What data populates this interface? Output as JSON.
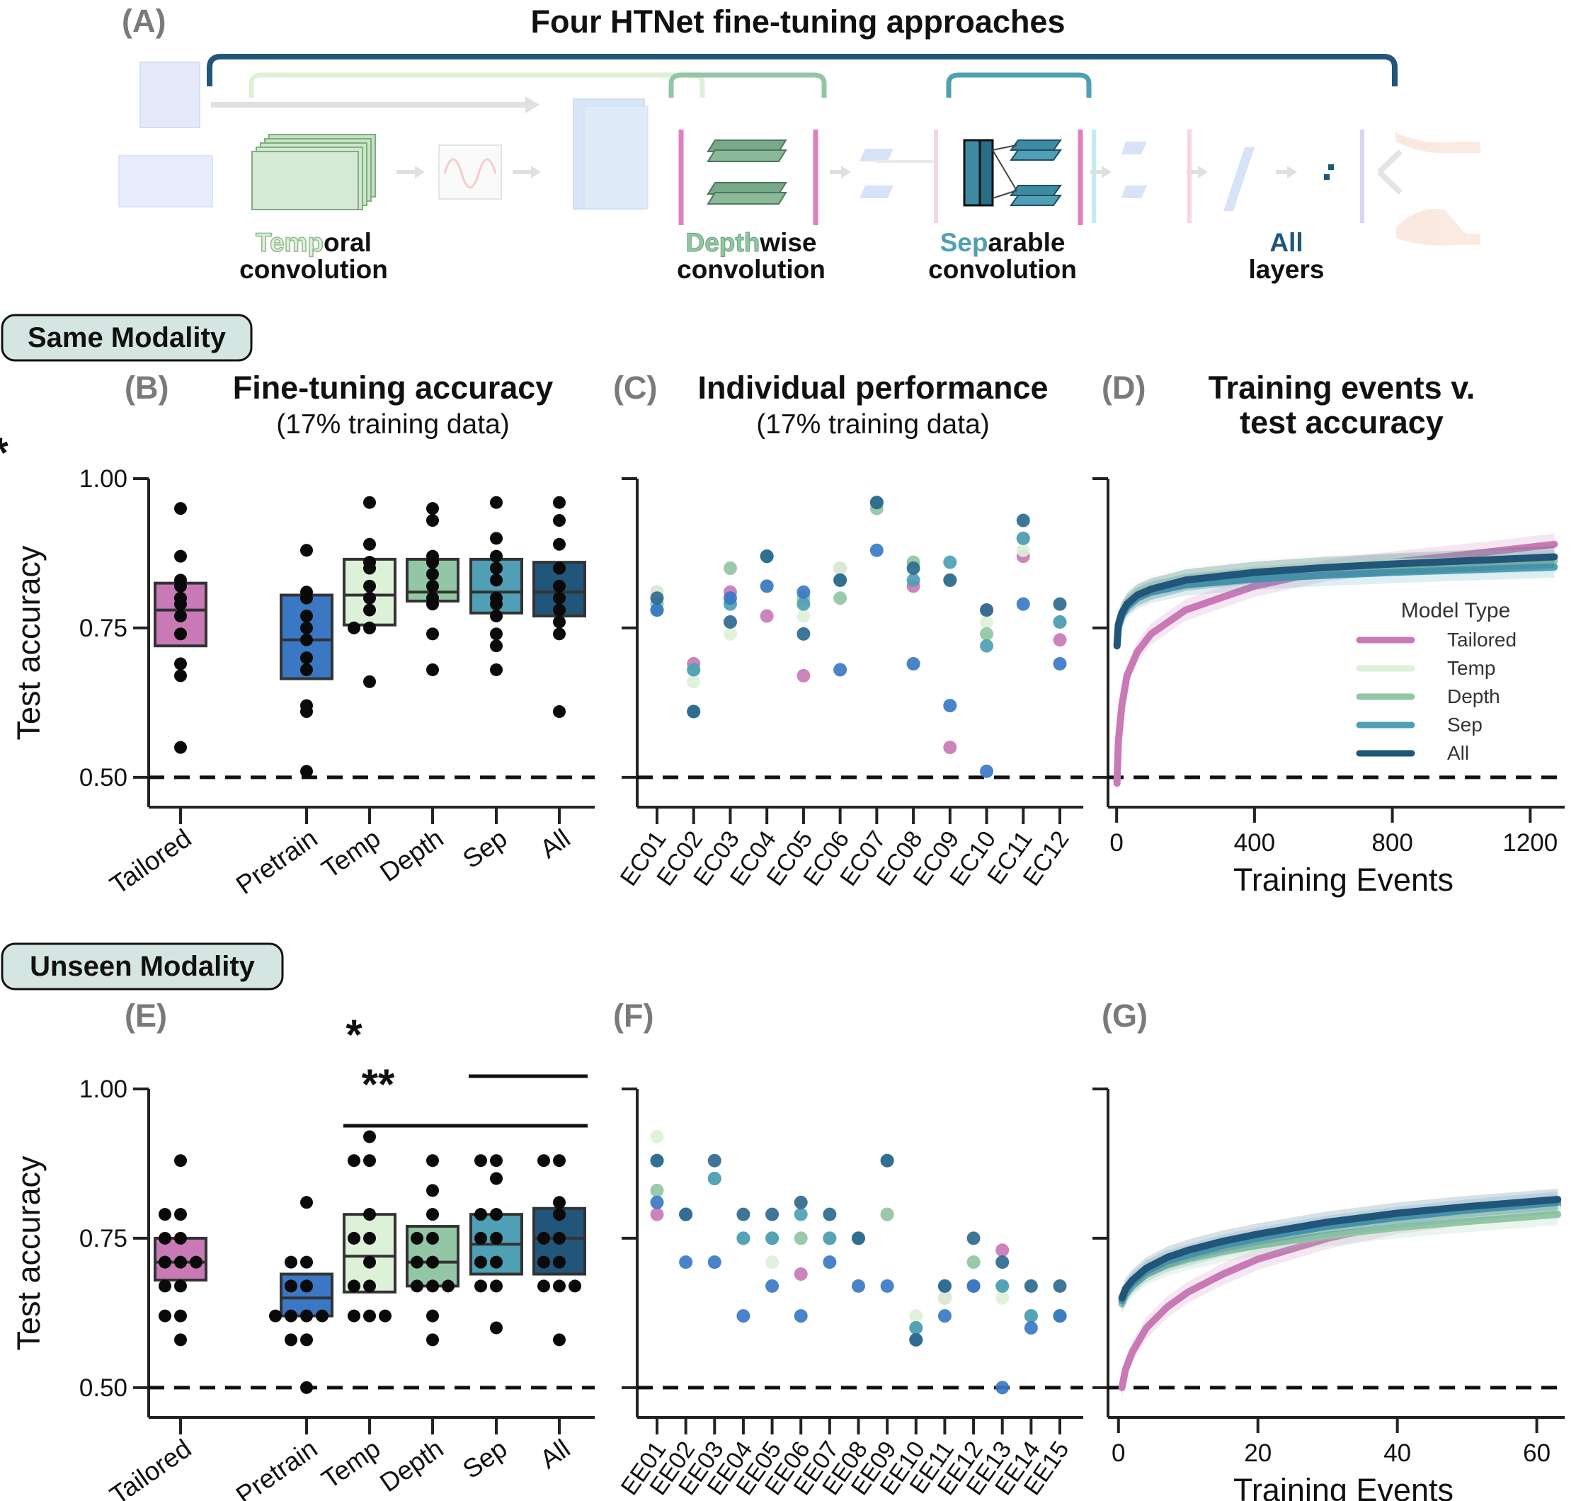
{
  "colors": {
    "Tailored": "#c879b6",
    "Pretrain": "#3a78c4",
    "Temp": "#ddf1d8",
    "Depth": "#92c6a4",
    "Sep": "#4f9fb5",
    "All": "#21557a",
    "individual_All": "#2e6a8f",
    "modality_box": "#d5e6e2"
  },
  "panelA": {
    "letter": "(A)",
    "title": "Four HTNet fine-tuning approaches",
    "labels": [
      {
        "highlight": "Temp",
        "rest": "oral",
        "line2": "convolution",
        "color_key": "Temp"
      },
      {
        "highlight": "Depth",
        "rest": "wise",
        "line2": "convolution",
        "color_key": "Depth"
      },
      {
        "highlight": "Sep",
        "rest": "arable",
        "line2": "convolution",
        "color_key": "Sep"
      },
      {
        "highlight": "All",
        "rest": "",
        "line2": "layers",
        "color_key": "All"
      }
    ]
  },
  "modality": {
    "same": "Same Modality",
    "unseen": "Unseen Modality"
  },
  "chart_data": [
    {
      "panel": "(B)",
      "type": "box-strip",
      "title": "Fine-tuning accuracy",
      "subtitle": "(17% training data)",
      "ylabel": "Test accuracy",
      "ylim": [
        0.45,
        1.0
      ],
      "yticks": [
        "0.50",
        "0.75",
        "1.00"
      ],
      "chance_level": 0.5,
      "categories": [
        "Tailored",
        "Pretrain",
        "Temp",
        "Depth",
        "Sep",
        "All"
      ],
      "boxes": [
        {
          "q1": 0.72,
          "median": 0.78,
          "q3": 0.825
        },
        {
          "q1": 0.665,
          "median": 0.73,
          "q3": 0.805
        },
        {
          "q1": 0.755,
          "median": 0.805,
          "q3": 0.865
        },
        {
          "q1": 0.795,
          "median": 0.81,
          "q3": 0.865
        },
        {
          "q1": 0.775,
          "median": 0.81,
          "q3": 0.865
        },
        {
          "q1": 0.77,
          "median": 0.81,
          "q3": 0.86
        }
      ],
      "points": [
        [
          0.95,
          0.87,
          0.83,
          0.82,
          0.8,
          0.79,
          0.77,
          0.74,
          0.69,
          0.67,
          0.55
        ],
        [
          0.88,
          0.81,
          0.8,
          0.77,
          0.75,
          0.73,
          0.7,
          0.68,
          0.62,
          0.61,
          0.51
        ],
        [
          0.96,
          0.89,
          0.86,
          0.85,
          0.82,
          0.8,
          0.78,
          0.75,
          0.75,
          0.66
        ],
        [
          0.95,
          0.93,
          0.87,
          0.86,
          0.84,
          0.82,
          0.8,
          0.79,
          0.74,
          0.68
        ],
        [
          0.96,
          0.9,
          0.87,
          0.85,
          0.83,
          0.8,
          0.79,
          0.77,
          0.74,
          0.72,
          0.68
        ],
        [
          0.96,
          0.93,
          0.89,
          0.85,
          0.82,
          0.8,
          0.78,
          0.76,
          0.74,
          0.61
        ]
      ],
      "significance": [
        {
          "from": 1,
          "to": 3,
          "label": "*"
        }
      ]
    },
    {
      "panel": "(C)",
      "type": "scatter",
      "title": "Individual performance",
      "subtitle": "(17% training data)",
      "ylim": [
        0.45,
        1.0
      ],
      "chance_level": 0.5,
      "categories": [
        "EC01",
        "EC02",
        "EC03",
        "EC04",
        "EC05",
        "EC06",
        "EC07",
        "EC08",
        "EC09",
        "EC10",
        "EC11",
        "EC12"
      ],
      "series": [
        {
          "name": "Tailored",
          "values": [
            0.81,
            0.69,
            0.81,
            0.77,
            0.67,
            0.85,
            0.96,
            0.82,
            0.55,
            0.78,
            0.87,
            0.73
          ]
        },
        {
          "name": "Temp",
          "values": [
            0.81,
            0.66,
            0.74,
            0.82,
            0.77,
            0.85,
            0.96,
            0.86,
            0.86,
            0.76,
            0.88,
            0.76
          ]
        },
        {
          "name": "Depth",
          "values": [
            0.79,
            0.68,
            0.85,
            0.87,
            0.8,
            0.8,
            0.95,
            0.86,
            0.83,
            0.74,
            0.9,
            0.76
          ]
        },
        {
          "name": "Sep",
          "values": [
            0.78,
            0.68,
            0.79,
            0.87,
            0.79,
            0.83,
            0.96,
            0.83,
            0.86,
            0.72,
            0.9,
            0.76
          ]
        },
        {
          "name": "Pretrain",
          "values": [
            0.78,
            0.61,
            0.8,
            0.82,
            0.81,
            0.68,
            0.88,
            0.69,
            0.62,
            0.51,
            0.79,
            0.69
          ]
        },
        {
          "name": "All",
          "values": [
            0.8,
            0.61,
            0.76,
            0.87,
            0.74,
            0.83,
            0.96,
            0.85,
            0.83,
            0.78,
            0.93,
            0.79
          ]
        }
      ]
    },
    {
      "panel": "(D)",
      "type": "line",
      "title_line1": "Training events v.",
      "title_line2": "test accuracy",
      "xlabel": "Training Events",
      "xlim": [
        -25,
        1300
      ],
      "xticks": [
        0,
        400,
        800,
        1200
      ],
      "ylim": [
        0.45,
        1.0
      ],
      "chance_level": 0.5,
      "legend": {
        "title": "Model Type",
        "position": "center-right"
      },
      "x": [
        1,
        5,
        15,
        30,
        60,
        100,
        200,
        400,
        600,
        800,
        1000,
        1270
      ],
      "series": [
        {
          "name": "Tailored",
          "values": [
            0.49,
            0.56,
            0.62,
            0.67,
            0.71,
            0.74,
            0.78,
            0.82,
            0.845,
            0.86,
            0.872,
            0.89
          ]
        },
        {
          "name": "Temp",
          "values": [
            0.73,
            0.76,
            0.78,
            0.795,
            0.81,
            0.82,
            0.835,
            0.847,
            0.855,
            0.86,
            0.862,
            0.865
          ]
        },
        {
          "name": "Depth",
          "values": [
            0.72,
            0.755,
            0.775,
            0.79,
            0.805,
            0.815,
            0.83,
            0.843,
            0.85,
            0.855,
            0.858,
            0.862
          ]
        },
        {
          "name": "Sep",
          "values": [
            0.72,
            0.75,
            0.77,
            0.785,
            0.8,
            0.81,
            0.822,
            0.832,
            0.838,
            0.843,
            0.847,
            0.852
          ]
        },
        {
          "name": "All",
          "values": [
            0.72,
            0.755,
            0.775,
            0.79,
            0.805,
            0.815,
            0.83,
            0.843,
            0.851,
            0.857,
            0.862,
            0.869
          ]
        }
      ]
    },
    {
      "panel": "(E)",
      "type": "box-strip",
      "ylabel": "Test accuracy",
      "ylim": [
        0.45,
        1.0
      ],
      "yticks": [
        "0.50",
        "0.75",
        "1.00"
      ],
      "chance_level": 0.5,
      "categories": [
        "Tailored",
        "Pretrain",
        "Temp",
        "Depth",
        "Sep",
        "All"
      ],
      "boxes": [
        {
          "q1": 0.68,
          "median": 0.71,
          "q3": 0.75
        },
        {
          "q1": 0.62,
          "median": 0.65,
          "q3": 0.69
        },
        {
          "q1": 0.66,
          "median": 0.72,
          "q3": 0.79
        },
        {
          "q1": 0.67,
          "median": 0.71,
          "q3": 0.77
        },
        {
          "q1": 0.69,
          "median": 0.74,
          "q3": 0.79
        },
        {
          "q1": 0.69,
          "median": 0.75,
          "q3": 0.8
        }
      ],
      "points": [
        [
          0.88,
          0.79,
          0.79,
          0.75,
          0.75,
          0.71,
          0.71,
          0.71,
          0.67,
          0.67,
          0.62,
          0.62,
          0.58
        ],
        [
          0.81,
          0.71,
          0.71,
          0.67,
          0.67,
          0.62,
          0.62,
          0.62,
          0.62,
          0.58,
          0.58,
          0.5
        ],
        [
          0.92,
          0.88,
          0.88,
          0.79,
          0.75,
          0.75,
          0.71,
          0.67,
          0.67,
          0.62,
          0.62,
          0.62
        ],
        [
          0.88,
          0.83,
          0.79,
          0.75,
          0.75,
          0.71,
          0.71,
          0.67,
          0.67,
          0.67,
          0.62,
          0.58
        ],
        [
          0.88,
          0.88,
          0.85,
          0.79,
          0.79,
          0.75,
          0.75,
          0.71,
          0.71,
          0.67,
          0.67,
          0.6
        ],
        [
          0.88,
          0.88,
          0.81,
          0.79,
          0.75,
          0.75,
          0.71,
          0.71,
          0.67,
          0.67,
          0.67,
          0.58
        ]
      ],
      "significance": [
        {
          "from": 0,
          "to": 5,
          "label": "*"
        },
        {
          "from": 1,
          "to": 5,
          "label": "**"
        }
      ]
    },
    {
      "panel": "(F)",
      "type": "scatter",
      "ylim": [
        0.45,
        1.0
      ],
      "chance_level": 0.5,
      "categories": [
        "EE01",
        "EE02",
        "EE03",
        "EE04",
        "EE05",
        "EE06",
        "EE07",
        "EE08",
        "EE09",
        "EE10",
        "EE11",
        "EE12",
        "EE13",
        "EE14",
        "EE15"
      ],
      "series": [
        {
          "name": "Tailored",
          "values": [
            0.79,
            0.79,
            0.85,
            0.75,
            0.75,
            0.69,
            0.75,
            0.75,
            0.79,
            0.6,
            0.65,
            0.67,
            0.73,
            0.62,
            0.62
          ]
        },
        {
          "name": "Temp",
          "values": [
            0.92,
            0.79,
            0.85,
            0.75,
            0.71,
            0.75,
            0.75,
            0.75,
            0.79,
            0.62,
            0.65,
            0.71,
            0.65,
            0.62,
            0.62
          ]
        },
        {
          "name": "Depth",
          "values": [
            0.83,
            0.79,
            0.85,
            0.75,
            0.75,
            0.75,
            0.75,
            0.75,
            0.79,
            0.6,
            0.67,
            0.71,
            0.67,
            0.62,
            0.62
          ]
        },
        {
          "name": "Sep",
          "values": [
            0.88,
            0.79,
            0.85,
            0.75,
            0.75,
            0.79,
            0.75,
            0.75,
            0.88,
            0.6,
            0.67,
            0.67,
            0.67,
            0.62,
            0.62
          ]
        },
        {
          "name": "Pretrain",
          "values": [
            0.81,
            0.71,
            0.71,
            0.62,
            0.67,
            0.62,
            0.71,
            0.67,
            0.67,
            0.58,
            0.62,
            0.67,
            0.5,
            0.6,
            0.62
          ]
        },
        {
          "name": "All",
          "values": [
            0.88,
            0.79,
            0.88,
            0.79,
            0.79,
            0.81,
            0.79,
            0.75,
            0.88,
            0.58,
            0.67,
            0.75,
            0.71,
            0.67,
            0.67
          ]
        }
      ]
    },
    {
      "panel": "(G)",
      "type": "line",
      "xlabel": "Training Events",
      "xlim": [
        -1.5,
        64
      ],
      "xticks": [
        0,
        20,
        40,
        60
      ],
      "ylim": [
        0.45,
        1.0
      ],
      "chance_level": 0.5,
      "x": [
        0.5,
        1,
        2,
        4,
        7,
        10,
        15,
        20,
        30,
        40,
        50,
        63
      ],
      "series": [
        {
          "name": "Tailored",
          "values": [
            0.5,
            0.53,
            0.56,
            0.6,
            0.635,
            0.66,
            0.69,
            0.715,
            0.75,
            0.775,
            0.79,
            0.805
          ]
        },
        {
          "name": "Temp",
          "values": [
            0.645,
            0.66,
            0.675,
            0.695,
            0.71,
            0.72,
            0.735,
            0.745,
            0.765,
            0.78,
            0.79,
            0.8
          ]
        },
        {
          "name": "Depth",
          "values": [
            0.64,
            0.655,
            0.67,
            0.69,
            0.705,
            0.715,
            0.728,
            0.738,
            0.755,
            0.768,
            0.778,
            0.79
          ]
        },
        {
          "name": "Sep",
          "values": [
            0.645,
            0.66,
            0.675,
            0.695,
            0.712,
            0.722,
            0.738,
            0.75,
            0.77,
            0.785,
            0.797,
            0.81
          ]
        },
        {
          "name": "All",
          "values": [
            0.65,
            0.665,
            0.68,
            0.7,
            0.718,
            0.73,
            0.745,
            0.757,
            0.777,
            0.792,
            0.803,
            0.815
          ]
        }
      ]
    }
  ]
}
